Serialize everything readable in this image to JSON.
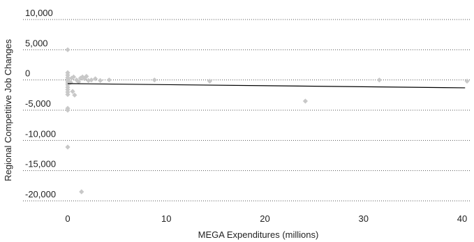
{
  "chart_data": {
    "type": "scatter",
    "xlabel": "MEGA Expenditures (millions)",
    "ylabel": "Regional Competitive Job Changes",
    "xlim": [
      -3,
      41
    ],
    "ylim": [
      -21000,
      10000
    ],
    "x_ticks": [
      0,
      10,
      20,
      30,
      40
    ],
    "x_tick_labels": [
      "0",
      "10",
      "20",
      "30",
      "40"
    ],
    "y_ticks": [
      10000,
      5000,
      0,
      -5000,
      -10000,
      -15000,
      -20000
    ],
    "y_tick_labels": [
      "10,000",
      "5,000",
      "0",
      "-5,000",
      "-10,000",
      "-15,000",
      "-20,000"
    ],
    "grid": "horizontal-dotted",
    "point_color": "#c8c8c8",
    "trend_color": "#000000",
    "trendline": {
      "x": [
        0,
        40.3
      ],
      "y": [
        -600,
        -1300
      ]
    },
    "points": [
      {
        "x": 0,
        "y": 5000
      },
      {
        "x": 0,
        "y": 1200
      },
      {
        "x": 0,
        "y": 800
      },
      {
        "x": 0,
        "y": 400
      },
      {
        "x": 0,
        "y": 100
      },
      {
        "x": 0,
        "y": -200
      },
      {
        "x": 0,
        "y": -500
      },
      {
        "x": 0,
        "y": -800
      },
      {
        "x": 0,
        "y": -1200
      },
      {
        "x": 0,
        "y": -1600
      },
      {
        "x": 0,
        "y": -2000
      },
      {
        "x": 0,
        "y": -2400
      },
      {
        "x": 0,
        "y": -4700
      },
      {
        "x": 0,
        "y": -5000
      },
      {
        "x": 0,
        "y": -11100
      },
      {
        "x": 0.3,
        "y": -400
      },
      {
        "x": 0.4,
        "y": 300
      },
      {
        "x": 0.5,
        "y": -1900
      },
      {
        "x": 0.6,
        "y": 500
      },
      {
        "x": 0.7,
        "y": -2500
      },
      {
        "x": 0.9,
        "y": 0
      },
      {
        "x": 1.1,
        "y": -300
      },
      {
        "x": 1.3,
        "y": 300
      },
      {
        "x": 1.4,
        "y": -18500
      },
      {
        "x": 1.5,
        "y": 500
      },
      {
        "x": 1.7,
        "y": 200
      },
      {
        "x": 1.9,
        "y": 600
      },
      {
        "x": 2.1,
        "y": -100
      },
      {
        "x": 2.4,
        "y": 0
      },
      {
        "x": 2.8,
        "y": 200
      },
      {
        "x": 3.3,
        "y": -100
      },
      {
        "x": 4.2,
        "y": 0
      },
      {
        "x": 8.8,
        "y": 0
      },
      {
        "x": 14.4,
        "y": -200
      },
      {
        "x": 24.1,
        "y": -3500
      },
      {
        "x": 31.6,
        "y": 0
      },
      {
        "x": 40.5,
        "y": -200
      }
    ]
  }
}
